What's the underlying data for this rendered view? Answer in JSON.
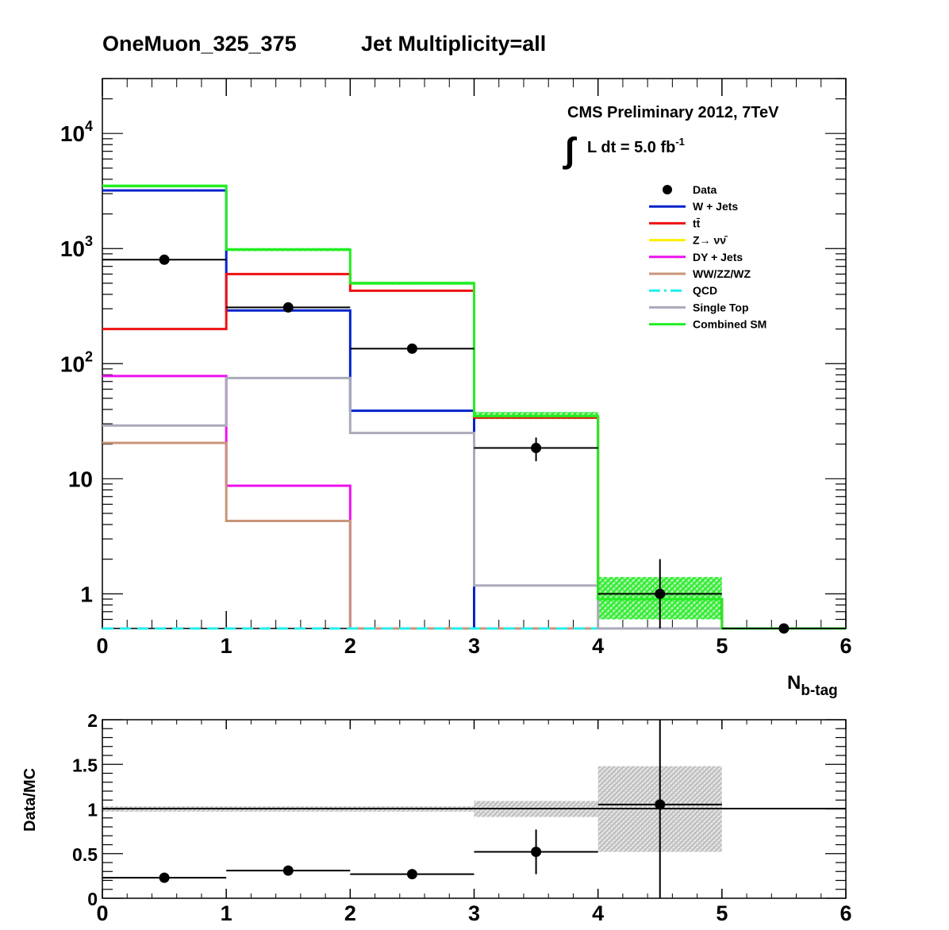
{
  "title": {
    "selection": "OneMuon_325_375",
    "multiplicity": "Jet Multiplicity=all"
  },
  "annotation": {
    "experiment": "CMS Preliminary 2012, 7TeV",
    "lumi_integral_sign": "∫",
    "lumi_text": "L dt = 5.0 fb",
    "lumi_exponent": "-1"
  },
  "legend": {
    "placement": "top-right",
    "entries": [
      {
        "label": "Data",
        "style": "marker",
        "color": "#000000"
      },
      {
        "label": "W + Jets",
        "style": "line",
        "color": "#0022cc"
      },
      {
        "label": "tt̄",
        "style": "line",
        "color": "#ee1111"
      },
      {
        "label": "Z→ νν̄",
        "style": "line",
        "color": "#ffee00"
      },
      {
        "label": "DY + Jets",
        "style": "line",
        "color": "#ee11ee"
      },
      {
        "label": "WW/ZZ/WZ",
        "style": "line",
        "color": "#c8957a"
      },
      {
        "label": "QCD",
        "style": "dashed",
        "color": "#22eeee"
      },
      {
        "label": "Single Top",
        "style": "line",
        "color": "#aaaabb"
      },
      {
        "label": "Combined SM",
        "style": "line",
        "color": "#22ee22"
      }
    ]
  },
  "chart_data": [
    {
      "type": "line",
      "subtype": "step-histogram",
      "xlabel_main": "N",
      "xlabel_sub": "b-tag",
      "ylabel": "",
      "xlim": [
        0,
        6
      ],
      "ylim": [
        0.5,
        30000
      ],
      "yscale": "log",
      "x_ticks": [
        "0",
        "1",
        "2",
        "3",
        "4",
        "5",
        "6"
      ],
      "y_tick_labels": [
        {
          "value": 1,
          "base": "1",
          "exp": ""
        },
        {
          "value": 10,
          "base": "10",
          "exp": ""
        },
        {
          "value": 100,
          "base": "10",
          "exp": "2"
        },
        {
          "value": 1000,
          "base": "10",
          "exp": "3"
        },
        {
          "value": 10000,
          "base": "10",
          "exp": "4"
        }
      ],
      "bin_edges": [
        0,
        1,
        2,
        3,
        4,
        5,
        6
      ],
      "series": [
        {
          "name": "W + Jets",
          "color": "#0022cc",
          "values": [
            3200,
            290,
            39,
            0.4,
            0.4,
            0.4
          ]
        },
        {
          "name": "tt̄",
          "color": "#ee1111",
          "values": [
            200,
            600,
            430,
            34,
            0.9,
            0.4
          ]
        },
        {
          "name": "Z→ νν̄",
          "color": "#ffee00",
          "dashed": true,
          "values": [
            0.5,
            0.5,
            0.5,
            0.5,
            0.5,
            0.5
          ]
        },
        {
          "name": "DY + Jets",
          "color": "#ee11ee",
          "values": [
            78,
            8.7,
            0.4,
            0.4,
            0.4,
            0.4
          ]
        },
        {
          "name": "WW/ZZ/WZ",
          "color": "#c8957a",
          "values": [
            20.5,
            4.3,
            0.5,
            0.5,
            0.5,
            0.5
          ]
        },
        {
          "name": "QCD",
          "color": "#22eeee",
          "dashed": true,
          "values": [
            0.5,
            0.5,
            0.5,
            0.5,
            0.5,
            0.5
          ]
        },
        {
          "name": "Single Top",
          "color": "#aaaabb",
          "values": [
            29,
            75,
            25,
            1.18,
            0.4,
            0.4
          ]
        },
        {
          "name": "Combined SM",
          "color": "#22ee22",
          "values": [
            3500,
            980,
            500,
            35,
            0.9,
            0.5
          ],
          "band_low": [
            3400,
            950,
            485,
            33,
            0.6,
            0.5
          ],
          "band_high": [
            3600,
            1010,
            515,
            38,
            1.4,
            0.5
          ]
        }
      ],
      "data_points": [
        {
          "x": 0.5,
          "y": 800,
          "yerr_low": 28,
          "yerr_high": 28
        },
        {
          "x": 1.5,
          "y": 308,
          "yerr_low": 18,
          "yerr_high": 18
        },
        {
          "x": 2.5,
          "y": 135,
          "yerr_low": 12,
          "yerr_high": 12
        },
        {
          "x": 3.5,
          "y": 18.5,
          "yerr_low": 4.3,
          "yerr_high": 4.3
        },
        {
          "x": 4.5,
          "y": 1,
          "yerr_low": 1,
          "yerr_high": 1
        },
        {
          "x": 5.5,
          "y": 0.5,
          "yerr_low": 0,
          "yerr_high": 0
        }
      ]
    },
    {
      "type": "scatter",
      "subtype": "ratio",
      "ylabel": "Data/MC",
      "xlim": [
        0,
        6
      ],
      "ylim": [
        0,
        2
      ],
      "x_ticks": [
        "0",
        "1",
        "2",
        "3",
        "4",
        "5",
        "6"
      ],
      "y_ticks": [
        "0",
        "0.5",
        "1",
        "1.5",
        "2"
      ],
      "reference_line": 1,
      "band": {
        "color": "#b4b4b4",
        "bins": [
          {
            "x0": 0,
            "x1": 1,
            "low": 0.97,
            "high": 1.03
          },
          {
            "x0": 1,
            "x1": 2,
            "low": 0.97,
            "high": 1.03
          },
          {
            "x0": 2,
            "x1": 3,
            "low": 0.97,
            "high": 1.03
          },
          {
            "x0": 3,
            "x1": 4,
            "low": 0.91,
            "high": 1.09
          },
          {
            "x0": 4,
            "x1": 5,
            "low": 0.52,
            "high": 1.48
          }
        ]
      },
      "points": [
        {
          "x": 0.5,
          "y": 0.23,
          "yerr": 0.01
        },
        {
          "x": 1.5,
          "y": 0.31,
          "yerr": 0.03
        },
        {
          "x": 2.5,
          "y": 0.27,
          "yerr": 0.05
        },
        {
          "x": 3.5,
          "y": 0.52,
          "yerr": 0.25
        },
        {
          "x": 4.5,
          "y": 1.05,
          "yerr": 1.05
        }
      ]
    }
  ]
}
